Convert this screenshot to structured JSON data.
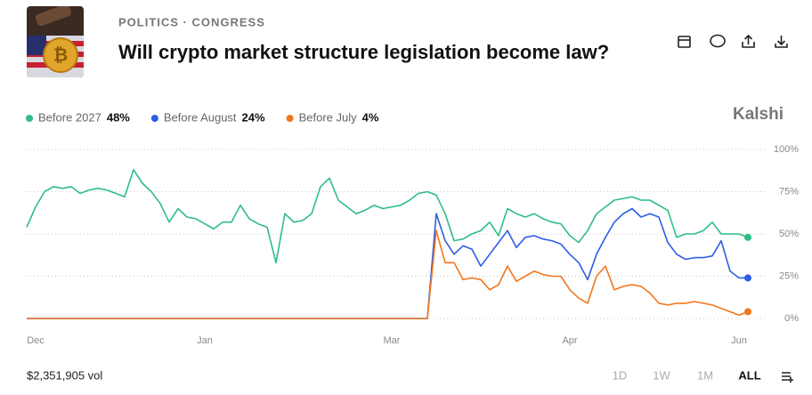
{
  "header": {
    "breadcrumb": "POLITICS · CONGRESS",
    "title": "Will crypto market structure legislation become law?",
    "brand": "Kalshi"
  },
  "footer": {
    "volume": "$2,351,905 vol",
    "ranges": [
      "1D",
      "1W",
      "1M",
      "ALL"
    ]
  },
  "chart_data": {
    "type": "line",
    "categories": [
      null,
      "Dec",
      null,
      null,
      null,
      null,
      null,
      null,
      null,
      null,
      null,
      null,
      null,
      null,
      null,
      null,
      null,
      null,
      null,
      null,
      "Jan",
      null,
      null,
      null,
      null,
      null,
      null,
      null,
      null,
      null,
      null,
      null,
      null,
      null,
      null,
      null,
      null,
      null,
      null,
      null,
      null,
      "Mar",
      null,
      null,
      null,
      null,
      null,
      null,
      null,
      null,
      null,
      null,
      null,
      null,
      null,
      null,
      null,
      null,
      null,
      null,
      null,
      "Apr",
      null,
      null,
      null,
      null,
      null,
      null,
      null,
      null,
      null,
      null,
      null,
      null,
      null,
      null,
      null,
      null,
      null,
      null,
      "Jun",
      null
    ],
    "series": [
      {
        "name": "Before 2027",
        "color": "#2ebd85",
        "last_label": "48%",
        "values": [
          54,
          66,
          75,
          78,
          77,
          78,
          74,
          76,
          77,
          76,
          74,
          72,
          88,
          80,
          75,
          68,
          57,
          65,
          60,
          59,
          56,
          53,
          57,
          57,
          67,
          59,
          56,
          54,
          33,
          62,
          57,
          58,
          62,
          78,
          83,
          70,
          66,
          62,
          64,
          67,
          65,
          66,
          67,
          70,
          74,
          75,
          73,
          62,
          46,
          47,
          50,
          52,
          57,
          49,
          65,
          62,
          60,
          62,
          59,
          57,
          56,
          49,
          45,
          52,
          62,
          66,
          70,
          71,
          72,
          70,
          70,
          67,
          64,
          48,
          50,
          50,
          52,
          57,
          50,
          50,
          50,
          48
        ]
      },
      {
        "name": "Before August",
        "color": "#2f5ce6",
        "last_label": "24%",
        "values": [
          0,
          0,
          0,
          0,
          0,
          0,
          0,
          0,
          0,
          0,
          0,
          0,
          0,
          0,
          0,
          0,
          0,
          0,
          0,
          0,
          0,
          0,
          0,
          0,
          0,
          0,
          0,
          0,
          0,
          0,
          0,
          0,
          0,
          0,
          0,
          0,
          0,
          0,
          0,
          0,
          0,
          0,
          0,
          0,
          0,
          0,
          62,
          46,
          38,
          43,
          41,
          31,
          38,
          45,
          52,
          42,
          48,
          49,
          47,
          46,
          44,
          38,
          33,
          23,
          38,
          48,
          57,
          62,
          65,
          60,
          62,
          60,
          45,
          38,
          35,
          36,
          36,
          37,
          46,
          28,
          24,
          24
        ]
      },
      {
        "name": "Before July",
        "color": "#f2761a",
        "last_label": "4%",
        "values": [
          0,
          0,
          0,
          0,
          0,
          0,
          0,
          0,
          0,
          0,
          0,
          0,
          0,
          0,
          0,
          0,
          0,
          0,
          0,
          0,
          0,
          0,
          0,
          0,
          0,
          0,
          0,
          0,
          0,
          0,
          0,
          0,
          0,
          0,
          0,
          0,
          0,
          0,
          0,
          0,
          0,
          0,
          0,
          0,
          0,
          0,
          52,
          33,
          33,
          23,
          24,
          23,
          17,
          20,
          31,
          22,
          25,
          28,
          26,
          25,
          25,
          17,
          12,
          9,
          25,
          31,
          17,
          19,
          20,
          19,
          15,
          9,
          8,
          9,
          9,
          10,
          9,
          8,
          6,
          4,
          2,
          4
        ]
      }
    ],
    "ylim": [
      0,
      100
    ],
    "yticks": [
      {
        "value": 0,
        "label": "0%"
      },
      {
        "value": 25,
        "label": "25%"
      },
      {
        "value": 50,
        "label": "50%"
      },
      {
        "value": 75,
        "label": "75%"
      },
      {
        "value": 100,
        "label": "100%"
      }
    ],
    "grid": true
  }
}
